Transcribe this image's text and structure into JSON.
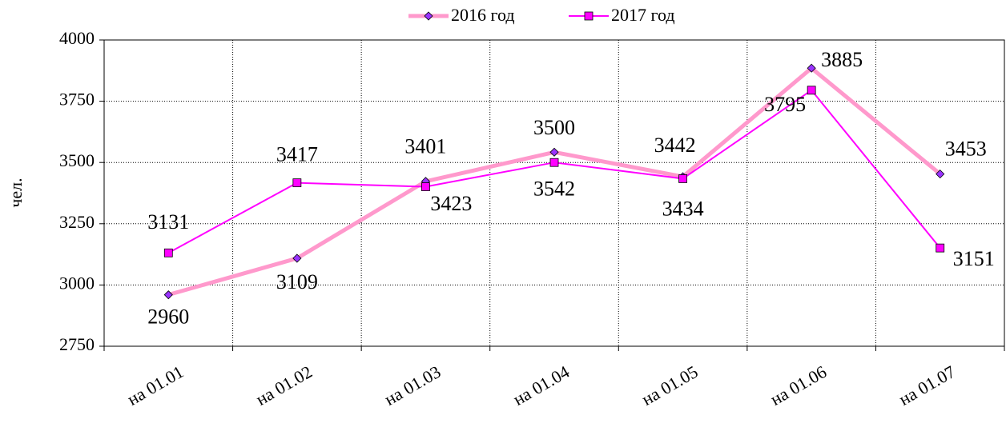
{
  "chart_data": {
    "type": "line",
    "y_label": "чел.",
    "categories": [
      "на 01.01",
      "на 01.02",
      "на 01.03",
      "на 01.04",
      "на 01.05",
      "на 01.06",
      "на 01.07"
    ],
    "series": [
      {
        "name": "2016 год",
        "color": "#ff99cc",
        "marker": "diamond",
        "values": [
          2960,
          3109,
          3423,
          3542,
          3442,
          3885,
          3453
        ]
      },
      {
        "name": "2017 год",
        "color": "#ff00ff",
        "marker": "square",
        "values": [
          3131,
          3417,
          3401,
          3500,
          3434,
          3795,
          3151
        ]
      }
    ],
    "ylim": [
      2750,
      4000
    ],
    "yticks": [
      2750,
      3000,
      3250,
      3500,
      3750,
      4000
    ],
    "grid": true,
    "legend": "top"
  }
}
